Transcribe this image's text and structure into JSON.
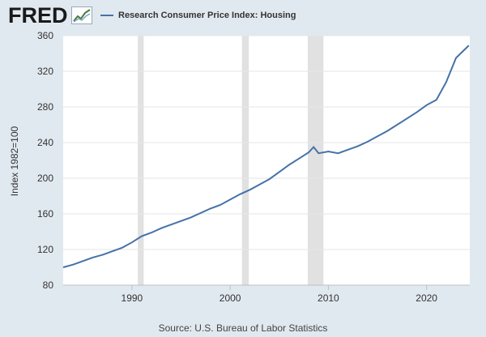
{
  "header": {
    "logo_text": "FRED",
    "legend_label": "Research Consumer Price Index: Housing"
  },
  "source_text": "Source: U.S. Bureau of Labor Statistics",
  "colors": {
    "line": "#4572a7",
    "background": "#e1e9f0",
    "plot_background": "#ffffff",
    "recession": "#e1e1e1"
  },
  "chart_data": {
    "type": "line",
    "title": "",
    "xlabel": "",
    "ylabel": "Index 1982=100",
    "xlim": [
      1983.0,
      2024.4
    ],
    "ylim": [
      80,
      360
    ],
    "yticks": [
      80,
      120,
      160,
      200,
      240,
      280,
      320,
      360
    ],
    "xticks": [
      1990,
      2000,
      2010,
      2020
    ],
    "grid": "horizontal",
    "legend": "top-left",
    "recessions": [
      [
        1990.6,
        1991.2
      ],
      [
        2001.2,
        2001.9
      ],
      [
        2007.9,
        2009.5
      ]
    ],
    "series": [
      {
        "name": "Research Consumer Price Index: Housing",
        "x": [
          1983,
          1984,
          1985,
          1986,
          1987,
          1988,
          1989,
          1990,
          1991,
          1992,
          1993,
          1994,
          1995,
          1996,
          1997,
          1998,
          1999,
          2000,
          2001,
          2002,
          2003,
          2004,
          2005,
          2006,
          2007,
          2008,
          2008.5,
          2009,
          2010,
          2011,
          2012,
          2013,
          2014,
          2015,
          2016,
          2017,
          2018,
          2019,
          2020,
          2021,
          2022,
          2023,
          2024.3
        ],
        "values": [
          100,
          103,
          107,
          111,
          114,
          118,
          122,
          128,
          135,
          139,
          144,
          148,
          152,
          156,
          161,
          166,
          170,
          176,
          182,
          187,
          193,
          199,
          207,
          215,
          222,
          229,
          235,
          228,
          230,
          228,
          232,
          236,
          241,
          247,
          253,
          260,
          267,
          274,
          282,
          288,
          308,
          335,
          349
        ]
      }
    ]
  }
}
